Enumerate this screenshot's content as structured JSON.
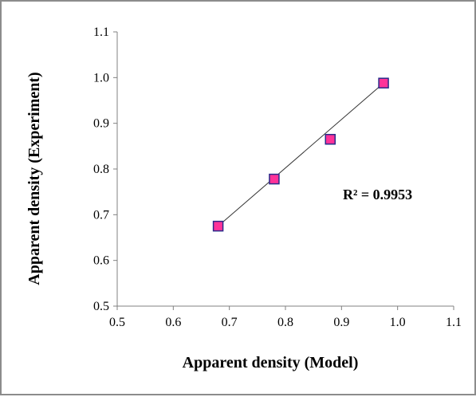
{
  "chart_data": {
    "type": "scatter",
    "title": "",
    "xlabel": "Apparent density (Model)",
    "ylabel": "Apparent density (Experiment)",
    "xlim": [
      0.5,
      1.1
    ],
    "ylim": [
      0.5,
      1.1
    ],
    "x_ticks": [
      "0.5",
      "0.6",
      "0.7",
      "0.8",
      "0.9",
      "1.0",
      "1.1"
    ],
    "y_ticks": [
      "0.5",
      "0.6",
      "0.7",
      "0.8",
      "0.9",
      "1.0",
      "1.1"
    ],
    "grid": false,
    "legend": "none",
    "series": [
      {
        "marker": "square",
        "marker_color": "#ff3399",
        "marker_edge": "#2a2a8a",
        "points": [
          {
            "x": 0.68,
            "y": 0.675
          },
          {
            "x": 0.78,
            "y": 0.778
          },
          {
            "x": 0.88,
            "y": 0.865
          },
          {
            "x": 0.975,
            "y": 0.988
          }
        ]
      }
    ],
    "trendline": {
      "type": "linear",
      "color": "#333333",
      "from": {
        "x": 0.68,
        "y": 0.675
      },
      "to": {
        "x": 0.975,
        "y": 0.988
      }
    },
    "annotations": [
      {
        "text": "R² = 0.9953"
      }
    ]
  }
}
